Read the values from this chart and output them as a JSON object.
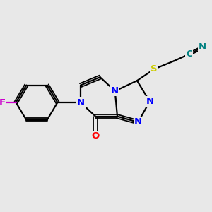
{
  "background_color": "#e8e8e8",
  "bond_color": "#000000",
  "atom_colors": {
    "N": "#0000ff",
    "O": "#ff0000",
    "S": "#cccc00",
    "F": "#cc00cc",
    "C_nitrile": "#008080"
  },
  "figsize": [
    3.0,
    3.0
  ],
  "dpi": 100
}
